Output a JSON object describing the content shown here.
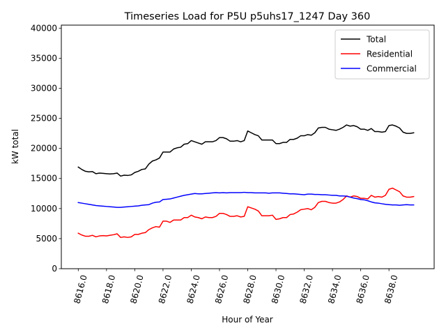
{
  "chart_data": {
    "type": "line",
    "title": "Timeseries Load for P5U p5uhs17_1247  Day 360",
    "xlabel": "Hour of Year",
    "ylabel": "kW total",
    "xlim": [
      8614.8,
      8641.2
    ],
    "ylim": [
      0,
      40500
    ],
    "xticks": [
      8616,
      8618,
      8620,
      8622,
      8624,
      8626,
      8628,
      8630,
      8632,
      8634,
      8636,
      8638
    ],
    "xtick_labels": [
      "8616.0",
      "8618.0",
      "8620.0",
      "8622.0",
      "8624.0",
      "8626.0",
      "8628.0",
      "8630.0",
      "8632.0",
      "8634.0",
      "8636.0",
      "8638.0"
    ],
    "yticks": [
      0,
      5000,
      10000,
      15000,
      20000,
      25000,
      30000,
      35000,
      40000
    ],
    "ytick_labels": [
      "0",
      "5000",
      "10000",
      "15000",
      "20000",
      "25000",
      "30000",
      "35000",
      "40000"
    ],
    "legend_position": "upper-right",
    "grid": false,
    "x_start": 8616,
    "x_step": 0.25,
    "series": [
      {
        "name": "Total",
        "color": "#000000",
        "values": [
          16900,
          16500,
          16200,
          16100,
          16150,
          15800,
          15900,
          15850,
          15800,
          15750,
          15800,
          15900,
          15400,
          15550,
          15500,
          15600,
          16000,
          16200,
          16500,
          16600,
          17400,
          17900,
          18100,
          18400,
          19400,
          19400,
          19400,
          19900,
          20100,
          20200,
          20700,
          20800,
          21300,
          21100,
          20900,
          20700,
          21100,
          21100,
          21100,
          21300,
          21800,
          21800,
          21600,
          21200,
          21200,
          21300,
          21100,
          21300,
          22900,
          22600,
          22300,
          22100,
          21400,
          21400,
          21400,
          21400,
          20800,
          20800,
          21000,
          21000,
          21500,
          21500,
          21700,
          22100,
          22100,
          22300,
          22200,
          22600,
          23400,
          23500,
          23500,
          23200,
          23100,
          23000,
          23200,
          23500,
          23900,
          23700,
          23800,
          23600,
          23200,
          23200,
          23000,
          23300,
          22800,
          22800,
          22700,
          22800,
          23800,
          23900,
          23700,
          23400,
          22700,
          22500,
          22500,
          22600
        ]
      },
      {
        "name": "Residential",
        "color": "#ff0000",
        "values": [
          5900,
          5600,
          5400,
          5400,
          5550,
          5300,
          5450,
          5500,
          5450,
          5550,
          5650,
          5800,
          5200,
          5300,
          5200,
          5300,
          5700,
          5700,
          5900,
          6000,
          6500,
          6800,
          7000,
          6900,
          7900,
          7900,
          7700,
          8100,
          8100,
          8100,
          8500,
          8500,
          8900,
          8600,
          8500,
          8300,
          8600,
          8500,
          8500,
          8700,
          9200,
          9200,
          9000,
          8700,
          8700,
          8800,
          8600,
          8700,
          10300,
          10100,
          9900,
          9600,
          8800,
          8800,
          8800,
          8900,
          8200,
          8300,
          8500,
          8500,
          9000,
          9100,
          9400,
          9800,
          9900,
          10000,
          9800,
          10200,
          11000,
          11200,
          11200,
          11000,
          10900,
          10900,
          11100,
          11500,
          12100,
          11900,
          12100,
          12000,
          11700,
          11700,
          11600,
          12200,
          11900,
          12000,
          11900,
          12200,
          13200,
          13400,
          13100,
          12800,
          12100,
          11900,
          11900,
          12000
        ]
      },
      {
        "name": "Commercial",
        "color": "#0000ff",
        "values": [
          11000,
          10900,
          10800,
          10700,
          10600,
          10500,
          10450,
          10400,
          10350,
          10300,
          10250,
          10200,
          10200,
          10250,
          10300,
          10350,
          10400,
          10450,
          10550,
          10600,
          10650,
          10900,
          11050,
          11100,
          11500,
          11550,
          11600,
          11750,
          11900,
          12050,
          12200,
          12300,
          12400,
          12500,
          12450,
          12450,
          12500,
          12550,
          12600,
          12650,
          12600,
          12650,
          12600,
          12650,
          12650,
          12650,
          12650,
          12700,
          12650,
          12650,
          12600,
          12600,
          12600,
          12600,
          12550,
          12600,
          12600,
          12600,
          12550,
          12500,
          12450,
          12450,
          12400,
          12350,
          12300,
          12400,
          12400,
          12350,
          12350,
          12300,
          12300,
          12250,
          12200,
          12200,
          12100,
          12100,
          12050,
          11900,
          11750,
          11650,
          11500,
          11450,
          11300,
          11100,
          10950,
          10900,
          10800,
          10700,
          10650,
          10600,
          10600,
          10550,
          10600,
          10650,
          10600,
          10600
        ]
      }
    ]
  }
}
